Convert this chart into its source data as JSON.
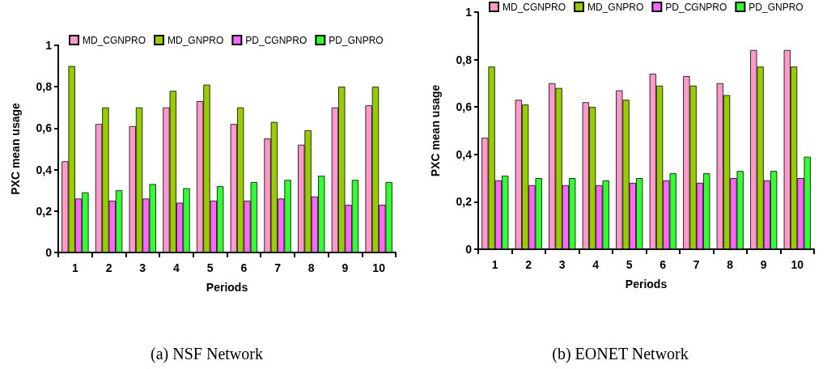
{
  "chart_data": [
    {
      "type": "bar",
      "title": "(a) NSF Network",
      "xlabel": "Periods",
      "ylabel": "PXC mean usage",
      "categories": [
        "1",
        "2",
        "3",
        "4",
        "5",
        "6",
        "7",
        "8",
        "9",
        "10"
      ],
      "series": [
        {
          "name": "MD_CGNPRO",
          "color": "#ff99cc",
          "values": [
            0.44,
            0.62,
            0.61,
            0.7,
            0.73,
            0.62,
            0.55,
            0.52,
            0.7,
            0.71
          ]
        },
        {
          "name": "MD_GNPRO",
          "color": "#99cc00",
          "values": [
            0.9,
            0.7,
            0.7,
            0.78,
            0.81,
            0.7,
            0.63,
            0.59,
            0.8,
            0.8
          ]
        },
        {
          "name": "PD_CGNPRO",
          "color": "#ff66ff",
          "values": [
            0.26,
            0.25,
            0.26,
            0.24,
            0.25,
            0.25,
            0.26,
            0.27,
            0.23,
            0.23
          ]
        },
        {
          "name": "PD_GNPRO",
          "color": "#33ff33",
          "values": [
            0.29,
            0.3,
            0.33,
            0.31,
            0.32,
            0.34,
            0.35,
            0.37,
            0.35,
            0.34
          ]
        }
      ],
      "ylim": [
        0,
        1
      ],
      "yticks": [
        {
          "value": 0,
          "label": "0"
        },
        {
          "value": 0.2,
          "label": "0,2"
        },
        {
          "value": 0.4,
          "label": "0,4"
        },
        {
          "value": 0.6,
          "label": "0,6"
        },
        {
          "value": 0.8,
          "label": "0,8"
        },
        {
          "value": 1,
          "label": "1"
        }
      ],
      "grid": false,
      "legend": "top"
    },
    {
      "type": "bar",
      "title": "(b) EONET Network",
      "xlabel": "Periods",
      "ylabel": "PXC mean usage",
      "categories": [
        "1",
        "2",
        "3",
        "4",
        "5",
        "6",
        "7",
        "8",
        "9",
        "10"
      ],
      "series": [
        {
          "name": "MD_CGNPRO",
          "color": "#ff99cc",
          "values": [
            0.47,
            0.63,
            0.7,
            0.62,
            0.67,
            0.74,
            0.73,
            0.7,
            0.84,
            0.84
          ]
        },
        {
          "name": "MD_GNPRO",
          "color": "#99cc00",
          "values": [
            0.77,
            0.61,
            0.68,
            0.6,
            0.63,
            0.69,
            0.69,
            0.65,
            0.77,
            0.77
          ]
        },
        {
          "name": "PD_CGNPRO",
          "color": "#ff66ff",
          "values": [
            0.29,
            0.27,
            0.27,
            0.27,
            0.28,
            0.29,
            0.28,
            0.3,
            0.29,
            0.3
          ]
        },
        {
          "name": "PD_GNPRO",
          "color": "#33ff33",
          "values": [
            0.31,
            0.3,
            0.3,
            0.29,
            0.3,
            0.32,
            0.32,
            0.33,
            0.33,
            0.39
          ]
        }
      ],
      "ylim": [
        0,
        1
      ],
      "yticks": [
        {
          "value": 0,
          "label": "0"
        },
        {
          "value": 0.2,
          "label": "0,2"
        },
        {
          "value": 0.4,
          "label": "0,4"
        },
        {
          "value": 0.6,
          "label": "0,6"
        },
        {
          "value": 0.8,
          "label": "0,8"
        },
        {
          "value": 1,
          "label": "1"
        }
      ],
      "grid": false,
      "legend": "top"
    }
  ]
}
